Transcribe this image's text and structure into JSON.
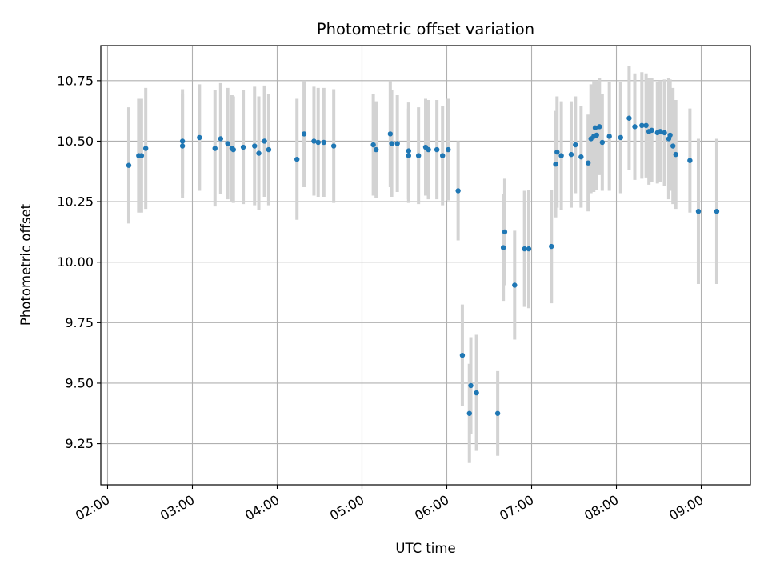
{
  "chart_data": {
    "type": "scatter",
    "title": "Photometric offset variation",
    "xlabel": "UTC time",
    "ylabel": "Photometric offset",
    "x_tick_labels": [
      "02:00",
      "03:00",
      "04:00",
      "05:00",
      "06:00",
      "07:00",
      "08:00",
      "09:00"
    ],
    "y_tick_labels": [
      "9.25",
      "9.50",
      "9.75",
      "10.00",
      "10.25",
      "10.50",
      "10.75"
    ],
    "x_ticks_hours": [
      2,
      3,
      4,
      5,
      6,
      7,
      8,
      9
    ],
    "y_ticks": [
      9.25,
      9.5,
      9.75,
      10.0,
      10.25,
      10.5,
      10.75
    ],
    "xlim_hours": [
      1.92,
      9.58
    ],
    "ylim": [
      9.08,
      10.895
    ],
    "grid": true,
    "marker_color": "#1f77b4",
    "errorbar_color": "#d3d3d3",
    "series": [
      {
        "x_time": [
          "02:15",
          "02:22",
          "02:24",
          "02:27",
          "02:53",
          "02:53",
          "03:05",
          "03:16",
          "03:20",
          "03:25",
          "03:28",
          "03:29",
          "03:36",
          "03:44",
          "03:47",
          "03:51",
          "03:54",
          "04:14",
          "04:19",
          "04:26",
          "04:29",
          "04:33",
          "04:40",
          "05:08",
          "05:10",
          "05:20",
          "05:21",
          "05:25",
          "05:33",
          "05:33",
          "05:40",
          "05:45",
          "05:47",
          "05:53",
          "05:57",
          "06:01",
          "06:08",
          "06:11",
          "06:16",
          "06:17",
          "06:21",
          "06:36",
          "06:40",
          "06:41",
          "06:48",
          "06:55",
          "06:58",
          "07:14",
          "07:17",
          "07:18",
          "07:21",
          "07:28",
          "07:31",
          "07:35",
          "07:40",
          "07:42",
          "07:44",
          "07:45",
          "07:46",
          "07:48",
          "07:50",
          "07:55",
          "08:03",
          "08:09",
          "08:13",
          "08:18",
          "08:21",
          "08:23",
          "08:25",
          "08:29",
          "08:31",
          "08:34",
          "08:37",
          "08:38",
          "08:40",
          "08:42",
          "08:52",
          "08:58",
          "09:11"
        ],
        "y": [
          10.4,
          10.44,
          10.44,
          10.47,
          10.5,
          10.48,
          10.515,
          10.47,
          10.51,
          10.49,
          10.47,
          10.465,
          10.475,
          10.48,
          10.45,
          10.5,
          10.465,
          10.425,
          10.53,
          10.5,
          10.495,
          10.495,
          10.48,
          10.485,
          10.465,
          10.53,
          10.49,
          10.49,
          10.44,
          10.46,
          10.44,
          10.475,
          10.465,
          10.465,
          10.44,
          10.465,
          10.295,
          9.615,
          9.375,
          9.49,
          9.46,
          9.375,
          10.06,
          10.125,
          9.905,
          10.055,
          10.055,
          10.065,
          10.405,
          10.455,
          10.44,
          10.445,
          10.485,
          10.435,
          10.41,
          10.51,
          10.52,
          10.555,
          10.525,
          10.56,
          10.495,
          10.52,
          10.515,
          10.595,
          10.56,
          10.565,
          10.565,
          10.54,
          10.545,
          10.535,
          10.54,
          10.535,
          10.51,
          10.525,
          10.48,
          10.445,
          10.42,
          10.21,
          10.21
        ],
        "yerr": [
          0.24,
          0.235,
          0.235,
          0.25,
          0.215,
          0.215,
          0.22,
          0.24,
          0.23,
          0.23,
          0.22,
          0.22,
          0.235,
          0.245,
          0.235,
          0.23,
          0.23,
          0.25,
          0.22,
          0.225,
          0.225,
          0.225,
          0.235,
          0.21,
          0.2,
          0.22,
          0.22,
          0.2,
          0.195,
          0.2,
          0.2,
          0.2,
          0.205,
          0.205,
          0.205,
          0.21,
          0.205,
          0.21,
          0.205,
          0.2,
          0.24,
          0.175,
          0.22,
          0.22,
          0.225,
          0.24,
          0.245,
          0.235,
          0.22,
          0.23,
          0.225,
          0.22,
          0.2,
          0.21,
          0.2,
          0.225,
          0.23,
          0.19,
          0.225,
          0.2,
          0.2,
          0.225,
          0.23,
          0.215,
          0.22,
          0.22,
          0.215,
          0.22,
          0.215,
          0.21,
          0.21,
          0.22,
          0.25,
          0.23,
          0.24,
          0.225,
          0.215,
          0.3,
          0.3
        ]
      }
    ]
  }
}
